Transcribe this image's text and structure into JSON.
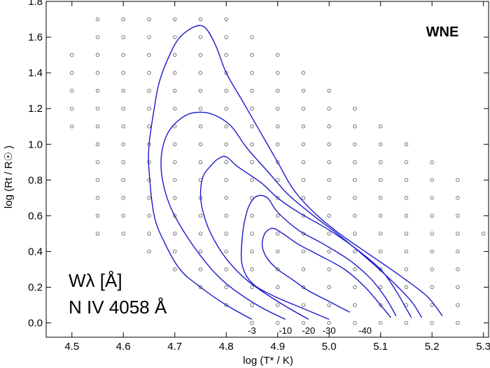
{
  "chart_data": {
    "type": "contour",
    "model_label": "WNE",
    "annotation_line1": "Wλ [Å]",
    "annotation_line2": "N IV 4058 Å",
    "xlabel": "log (T* / K)",
    "ylabel": "log (Rt / R☉ )",
    "xlim": [
      4.45,
      5.31
    ],
    "ylim": [
      -0.08,
      1.8
    ],
    "xticks": [
      {
        "value": 4.5,
        "label": "4.5"
      },
      {
        "value": 4.6,
        "label": "4.6"
      },
      {
        "value": 4.7,
        "label": "4.7"
      },
      {
        "value": 4.8,
        "label": "4.8"
      },
      {
        "value": 4.9,
        "label": "4.9"
      },
      {
        "value": 5.0,
        "label": "5.0"
      },
      {
        "value": 5.1,
        "label": "5.1"
      },
      {
        "value": 5.2,
        "label": "5.2"
      },
      {
        "value": 5.3,
        "label": "5.3"
      }
    ],
    "yticks": [
      {
        "value": 0.0,
        "label": "0.0"
      },
      {
        "value": 0.2,
        "label": "0.2"
      },
      {
        "value": 0.4,
        "label": "0.4"
      },
      {
        "value": 0.6,
        "label": "0.6"
      },
      {
        "value": 0.8,
        "label": "0.8"
      },
      {
        "value": 1.0,
        "label": "1.0"
      },
      {
        "value": 1.2,
        "label": "1.2"
      },
      {
        "value": 1.4,
        "label": "1.4"
      },
      {
        "value": 1.6,
        "label": "1.6"
      },
      {
        "value": 1.8,
        "label": "1.8"
      }
    ],
    "contour_color": "#1a1acc",
    "grid_point_color": "#555555",
    "grid": false,
    "grid_columns": [
      {
        "x": 4.5,
        "ymin": 1.1,
        "ymax": 1.5
      },
      {
        "x": 4.55,
        "ymin": 0.5,
        "ymax": 1.7
      },
      {
        "x": 4.6,
        "ymin": 0.5,
        "ymax": 1.7
      },
      {
        "x": 4.65,
        "ymin": 0.4,
        "ymax": 1.7
      },
      {
        "x": 4.7,
        "ymin": 0.3,
        "ymax": 1.7
      },
      {
        "x": 4.75,
        "ymin": 0.2,
        "ymax": 1.7
      },
      {
        "x": 4.8,
        "ymin": 0.1,
        "ymax": 1.7
      },
      {
        "x": 4.85,
        "ymin": 0.0,
        "ymax": 1.6
      },
      {
        "x": 4.9,
        "ymin": 0.0,
        "ymax": 1.5
      },
      {
        "x": 4.95,
        "ymin": 0.0,
        "ymax": 1.4
      },
      {
        "x": 5.0,
        "ymin": 0.0,
        "ymax": 1.3
      },
      {
        "x": 5.05,
        "ymin": 0.0,
        "ymax": 1.2
      },
      {
        "x": 5.1,
        "ymin": 0.0,
        "ymax": 1.1
      },
      {
        "x": 5.15,
        "ymin": 0.0,
        "ymax": 1.0
      },
      {
        "x": 5.2,
        "ymin": 0.0,
        "ymax": 0.9
      },
      {
        "x": 5.25,
        "ymin": 0.0,
        "ymax": 0.8
      },
      {
        "x": 5.3,
        "ymin": 0.5,
        "ymax": 0.5
      }
    ],
    "contours": [
      {
        "level": -3,
        "label": "-3",
        "label_x": 4.85,
        "label_y": -0.04,
        "points": [
          [
            4.85,
            0.02
          ],
          [
            4.8,
            0.1
          ],
          [
            4.75,
            0.2
          ],
          [
            4.71,
            0.3
          ],
          [
            4.68,
            0.45
          ],
          [
            4.66,
            0.6
          ],
          [
            4.65,
            0.85
          ],
          [
            4.65,
            1.0
          ],
          [
            4.66,
            1.2
          ],
          [
            4.67,
            1.35
          ],
          [
            4.69,
            1.5
          ],
          [
            4.71,
            1.6
          ],
          [
            4.74,
            1.66
          ],
          [
            4.76,
            1.65
          ],
          [
            4.78,
            1.55
          ],
          [
            4.8,
            1.4
          ],
          [
            4.83,
            1.25
          ],
          [
            4.86,
            1.1
          ],
          [
            4.9,
            0.9
          ],
          [
            4.93,
            0.75
          ],
          [
            4.97,
            0.62
          ],
          [
            5.02,
            0.5
          ],
          [
            5.08,
            0.38
          ],
          [
            5.14,
            0.26
          ],
          [
            5.19,
            0.15
          ],
          [
            5.22,
            0.04
          ]
        ]
      },
      {
        "level": -10,
        "label": "-10",
        "label_x": 4.915,
        "label_y": -0.04,
        "points": [
          [
            4.915,
            0.02
          ],
          [
            4.86,
            0.1
          ],
          [
            4.8,
            0.22
          ],
          [
            4.76,
            0.34
          ],
          [
            4.72,
            0.5
          ],
          [
            4.69,
            0.66
          ],
          [
            4.675,
            0.82
          ],
          [
            4.675,
            0.96
          ],
          [
            4.69,
            1.08
          ],
          [
            4.72,
            1.16
          ],
          [
            4.75,
            1.18
          ],
          [
            4.78,
            1.16
          ],
          [
            4.81,
            1.1
          ],
          [
            4.84,
            0.98
          ],
          [
            4.88,
            0.85
          ],
          [
            4.92,
            0.72
          ],
          [
            4.97,
            0.6
          ],
          [
            5.02,
            0.49
          ],
          [
            5.07,
            0.37
          ],
          [
            5.12,
            0.24
          ],
          [
            5.16,
            0.12
          ],
          [
            5.18,
            0.03
          ]
        ]
      },
      {
        "level": -20,
        "label": "-20",
        "label_x": 4.96,
        "label_y": -0.04,
        "points": [
          [
            4.96,
            0.02
          ],
          [
            4.9,
            0.12
          ],
          [
            4.84,
            0.24
          ],
          [
            4.8,
            0.36
          ],
          [
            4.77,
            0.5
          ],
          [
            4.755,
            0.62
          ],
          [
            4.75,
            0.72
          ],
          [
            4.755,
            0.82
          ],
          [
            4.77,
            0.88
          ],
          [
            4.785,
            0.92
          ],
          [
            4.8,
            0.93
          ],
          [
            4.82,
            0.88
          ],
          [
            4.84,
            0.84
          ],
          [
            4.87,
            0.78
          ],
          [
            4.9,
            0.7
          ],
          [
            4.94,
            0.62
          ],
          [
            5.0,
            0.52
          ],
          [
            5.05,
            0.42
          ],
          [
            5.1,
            0.3
          ],
          [
            5.13,
            0.18
          ],
          [
            5.15,
            0.08
          ],
          [
            5.16,
            0.03
          ]
        ]
      },
      {
        "level": -30,
        "label": "-30",
        "label_x": 5.0,
        "label_y": -0.04,
        "points": [
          [
            5.0,
            0.02
          ],
          [
            4.95,
            0.08
          ],
          [
            4.9,
            0.14
          ],
          [
            4.86,
            0.2
          ],
          [
            4.84,
            0.26
          ],
          [
            4.83,
            0.34
          ],
          [
            4.83,
            0.44
          ],
          [
            4.835,
            0.56
          ],
          [
            4.845,
            0.66
          ],
          [
            4.86,
            0.71
          ],
          [
            4.88,
            0.7
          ],
          [
            4.9,
            0.62
          ],
          [
            4.94,
            0.52
          ],
          [
            4.99,
            0.44
          ],
          [
            5.04,
            0.35
          ],
          [
            5.08,
            0.25
          ],
          [
            5.11,
            0.14
          ],
          [
            5.13,
            0.04
          ]
        ]
      },
      {
        "level": -40,
        "label": "-40",
        "label_x": 5.07,
        "label_y": -0.04,
        "points": [
          [
            5.04,
            0.06
          ],
          [
            5.0,
            0.12
          ],
          [
            4.96,
            0.18
          ],
          [
            4.93,
            0.24
          ],
          [
            4.9,
            0.3
          ],
          [
            4.88,
            0.36
          ],
          [
            4.87,
            0.43
          ],
          [
            4.875,
            0.5
          ],
          [
            4.89,
            0.53
          ],
          [
            4.91,
            0.5
          ],
          [
            4.94,
            0.44
          ],
          [
            4.98,
            0.38
          ],
          [
            5.03,
            0.3
          ],
          [
            5.07,
            0.2
          ],
          [
            5.1,
            0.1
          ],
          [
            5.12,
            0.03
          ]
        ]
      }
    ]
  }
}
